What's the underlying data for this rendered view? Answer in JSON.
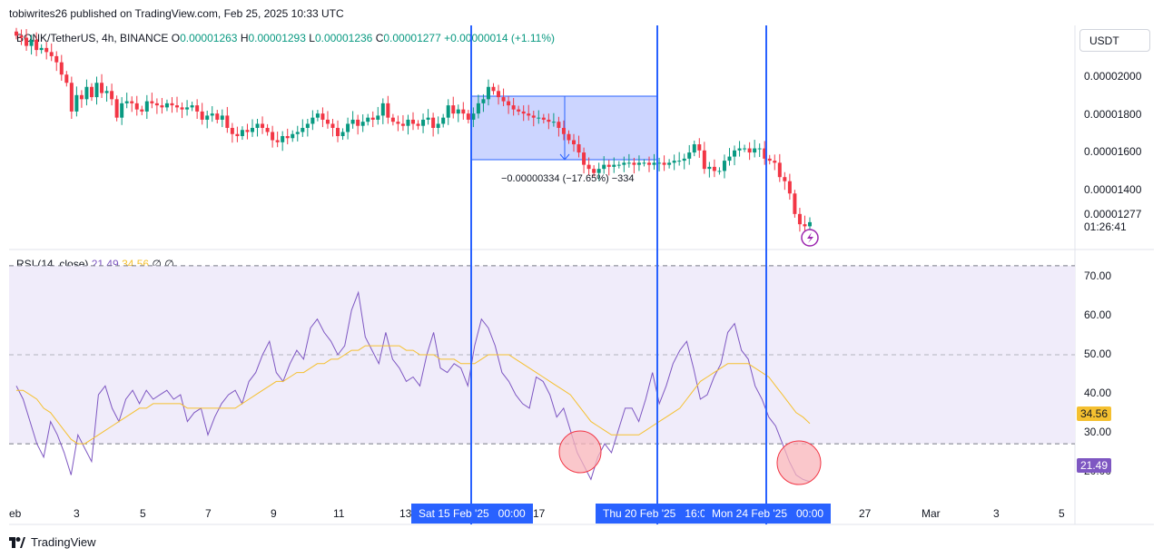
{
  "header": {
    "publisher": "tobiwrites26 published on TradingView.com, Feb 25, 2025 10:33 UTC"
  },
  "legend": {
    "symbol": "BONK/TetherUS, 4h, BINANCE",
    "o_label": "O",
    "o_value": "0.00001263",
    "h_label": "H",
    "h_value": "0.00001293",
    "l_label": "L",
    "l_value": "0.00001236",
    "c_label": "C",
    "c_value": "0.00001277",
    "change": "+0.00000014 (+1.11%)"
  },
  "currency_button": "USDT",
  "price_axis": {
    "ticks": [
      "0.00002000",
      "0.00001800",
      "0.00001600",
      "0.00001400"
    ],
    "last_price": "0.00001277",
    "countdown": "01:26:41"
  },
  "measure": {
    "label": "−0.00000334 (−17.65%) −334"
  },
  "rsi_legend": {
    "title": "RSI (14, close)",
    "rsi_value": "21.49",
    "ma_value": "34.56",
    "extra1": "∅",
    "extra2": "∅"
  },
  "rsi_axis": {
    "ticks": [
      "70.00",
      "60.00",
      "50.00",
      "40.00",
      "30.00",
      "20.00"
    ],
    "rsi_badge": "21.49",
    "ma_badge": "34.56"
  },
  "time_axis": {
    "ticks": [
      "eb",
      "3",
      "5",
      "7",
      "9",
      "11",
      "13",
      "17",
      "27",
      "Mar",
      "3",
      "5"
    ],
    "highlight1": "Sat 15 Feb '25   00:00",
    "highlight2": "Thu 20 Feb '25   16:0",
    "highlight3": "Mon 24 Feb '25   00:00"
  },
  "footer": {
    "brand": "TradingView"
  },
  "colors": {
    "up": "#089981",
    "down": "#f23645",
    "rsi": "#7e57c2",
    "rsi_ma": "#f5c030",
    "vline": "#2962ff",
    "measure_fill": "#bfcbff",
    "band": "#f0ecfa",
    "circle_stroke": "#f23645"
  },
  "chart_data": [
    {
      "type": "candlestick",
      "title": "BONK/TetherUS, 4h, BINANCE",
      "ylim": [
        1.16e-05,
        2.24e-05
      ],
      "yticks": [
        2e-05,
        1.8e-05,
        1.6e-05,
        1.4e-05
      ],
      "close": [
        2.19e-05,
        2.18e-05,
        2.14e-05,
        2.17e-05,
        2.12e-05,
        2.13e-05,
        2.11e-05,
        2.09e-05,
        2.06e-05,
        2e-05,
        1.96e-05,
        1.82e-05,
        1.9e-05,
        1.88e-05,
        1.94e-05,
        1.89e-05,
        1.96e-05,
        1.91e-05,
        1.92e-05,
        1.88e-05,
        1.79e-05,
        1.86e-05,
        1.87e-05,
        1.86e-05,
        1.83e-05,
        1.82e-05,
        1.87e-05,
        1.86e-05,
        1.85e-05,
        1.84e-05,
        1.86e-05,
        1.85e-05,
        1.84e-05,
        1.83e-05,
        1.84e-05,
        1.85e-05,
        1.82e-05,
        1.78e-05,
        1.8e-05,
        1.81e-05,
        1.78e-05,
        1.8e-05,
        1.74e-05,
        1.71e-05,
        1.7e-05,
        1.73e-05,
        1.72e-05,
        1.74e-05,
        1.76e-05,
        1.74e-05,
        1.72e-05,
        1.68e-05,
        1.67e-05,
        1.7e-05,
        1.69e-05,
        1.71e-05,
        1.72e-05,
        1.74e-05,
        1.76e-05,
        1.79e-05,
        1.81e-05,
        1.78e-05,
        1.76e-05,
        1.74e-05,
        1.7e-05,
        1.72e-05,
        1.76e-05,
        1.78e-05,
        1.75e-05,
        1.77e-05,
        1.79e-05,
        1.78e-05,
        1.8e-05,
        1.86e-05,
        1.79e-05,
        1.77e-05,
        1.76e-05,
        1.75e-05,
        1.78e-05,
        1.76e-05,
        1.75e-05,
        1.78e-05,
        1.79e-05,
        1.74e-05,
        1.76e-05,
        1.79e-05,
        1.85e-05,
        1.81e-05,
        1.83e-05,
        1.81e-05,
        1.78e-05,
        1.81e-05,
        1.86e-05,
        1.88e-05,
        1.94e-05,
        1.92e-05,
        1.89e-05,
        1.87e-05,
        1.85e-05,
        1.83e-05,
        1.82e-05,
        1.81e-05,
        1.8e-05,
        1.79e-05,
        1.79e-05,
        1.78e-05,
        1.77e-05,
        1.77e-05,
        1.74e-05,
        1.71e-05,
        1.68e-05,
        1.66e-05,
        1.62e-05,
        1.56e-05,
        1.54e-05,
        1.52e-05,
        1.54e-05,
        1.56e-05,
        1.55e-05,
        1.56e-05,
        1.56e-05,
        1.57e-05,
        1.57e-05,
        1.56e-05,
        1.57e-05,
        1.57e-05,
        1.56e-05,
        1.57e-05,
        1.57e-05,
        1.56e-05,
        1.57e-05,
        1.58e-05,
        1.58e-05,
        1.59e-05,
        1.62e-05,
        1.66e-05,
        1.63e-05,
        1.54e-05,
        1.55e-05,
        1.53e-05,
        1.53e-05,
        1.58e-05,
        1.6e-05,
        1.63e-05,
        1.64e-05,
        1.64e-05,
        1.62e-05,
        1.64e-05,
        1.64e-05,
        1.59e-05,
        1.58e-05,
        1.57e-05,
        1.5e-05,
        1.48e-05,
        1.42e-05,
        1.32e-05,
        1.27e-05,
        1.26e-05,
        1.28e-05
      ]
    },
    {
      "type": "line",
      "title": "RSI (14, close)",
      "ylim": [
        18,
        72
      ],
      "yticks": [
        70,
        60,
        50,
        40,
        30,
        20
      ],
      "series": [
        {
          "name": "RSI",
          "values": [
            43,
            40,
            35,
            30,
            27,
            35,
            32,
            28,
            23,
            32,
            29,
            26,
            41,
            43,
            38,
            35,
            40,
            42,
            39,
            42,
            40,
            41,
            42,
            40,
            41,
            35,
            37,
            38,
            32,
            36,
            39,
            41,
            42,
            39,
            44,
            46,
            50,
            53,
            46,
            44,
            48,
            51,
            49,
            56,
            58,
            55,
            53,
            50,
            52,
            60,
            64,
            54,
            51,
            48,
            55,
            49,
            47,
            44,
            45,
            43,
            50,
            55,
            47,
            46,
            48,
            47,
            43,
            52,
            58,
            56,
            52,
            46,
            44,
            41,
            39,
            38,
            45,
            44,
            41,
            36,
            38,
            33,
            28,
            25,
            22,
            27,
            30,
            28,
            33,
            38,
            38,
            35,
            40,
            46,
            39,
            43,
            48,
            51,
            53,
            47,
            40,
            41,
            45,
            48,
            55,
            57,
            51,
            49,
            43,
            40,
            36,
            34,
            30,
            26,
            23,
            22,
            21.49
          ]
        },
        {
          "name": "RSI-based MA",
          "values": [
            42,
            42,
            41,
            40,
            38,
            37,
            35,
            33,
            31,
            30,
            30,
            31,
            32,
            33,
            34,
            35,
            36,
            37,
            38,
            38,
            39,
            39,
            39,
            39,
            39,
            38,
            38,
            38,
            38,
            38,
            38,
            38,
            38,
            39,
            40,
            41,
            42,
            43,
            44,
            44,
            45,
            46,
            46,
            47,
            48,
            48,
            49,
            49,
            50,
            51,
            51,
            52,
            52,
            52,
            52,
            52,
            52,
            51,
            51,
            50,
            50,
            50,
            49,
            49,
            49,
            48,
            48,
            48,
            49,
            50,
            50,
            50,
            50,
            49,
            48,
            47,
            46,
            45,
            44,
            43,
            42,
            41,
            39,
            37,
            35,
            34,
            33,
            32,
            32,
            32,
            32,
            32,
            33,
            34,
            35,
            36,
            37,
            38,
            40,
            42,
            44,
            45,
            46,
            47,
            48,
            48,
            48,
            48,
            47,
            46,
            45,
            43,
            41,
            39,
            37,
            36,
            34.56
          ]
        }
      ]
    }
  ]
}
